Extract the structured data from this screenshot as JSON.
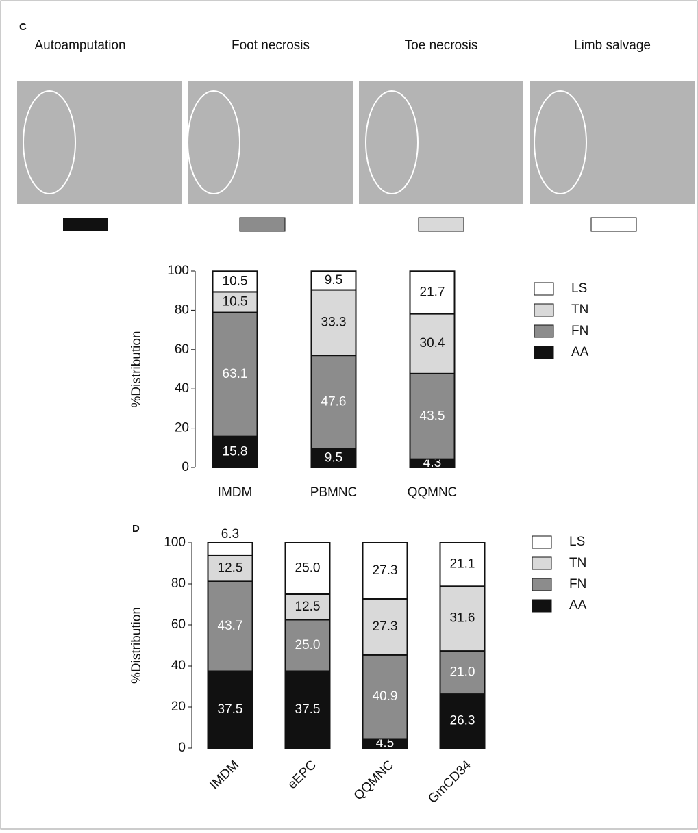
{
  "panel_c": {
    "label": "C",
    "photos": [
      "Autoamputation",
      "Foot necrosis",
      "Toe necrosis",
      "Limb salvage"
    ]
  },
  "chart_data": [
    {
      "type": "bar",
      "stacked": true,
      "ylabel": "%Distribution",
      "categories": [
        "IMDM",
        "PBMNC",
        "QQMNC"
      ],
      "ylim": [
        0,
        100
      ],
      "yticks": [
        0,
        20,
        40,
        60,
        80,
        100
      ],
      "legend": "right",
      "series": [
        {
          "name": "AA",
          "color": "#111111",
          "label_color": "#ffffff",
          "values": [
            15.8,
            9.5,
            4.3
          ],
          "value_labels": [
            "15.8",
            "9.5",
            "4.3"
          ]
        },
        {
          "name": "FN",
          "color": "#8c8c8c",
          "label_color": "#ffffff",
          "values": [
            63.1,
            47.6,
            43.5
          ],
          "value_labels": [
            "63.1",
            "47.6",
            "43.5"
          ]
        },
        {
          "name": "TN",
          "color": "#d9d9d9",
          "label_color": "#111111",
          "values": [
            10.5,
            33.3,
            30.4
          ],
          "value_labels": [
            "10.5",
            "33.3",
            "30.4"
          ]
        },
        {
          "name": "LS",
          "color": "#ffffff",
          "label_color": "#111111",
          "values": [
            10.5,
            9.5,
            21.7
          ],
          "value_labels": [
            "10.5",
            "9.5",
            "21.7"
          ]
        }
      ]
    },
    {
      "type": "bar",
      "stacked": true,
      "panel": "D",
      "ylabel": "%Distribution",
      "categories": [
        "IMDM",
        "eEPC",
        "QQMNC",
        "GmCD34"
      ],
      "ylim": [
        0,
        100
      ],
      "yticks": [
        0,
        20,
        40,
        60,
        80,
        100
      ],
      "legend": "right",
      "series": [
        {
          "name": "AA",
          "color": "#111111",
          "label_color": "#ffffff",
          "values": [
            37.5,
            37.5,
            4.5,
            26.3
          ],
          "value_labels": [
            "37.5",
            "37.5",
            "4.5",
            "26.3"
          ]
        },
        {
          "name": "FN",
          "color": "#8c8c8c",
          "label_color": "#ffffff",
          "values": [
            43.7,
            25.0,
            40.9,
            21.0
          ],
          "value_labels": [
            "43.7",
            "25.0",
            "40.9",
            "21.0"
          ]
        },
        {
          "name": "TN",
          "color": "#d9d9d9",
          "label_color": "#111111",
          "values": [
            12.5,
            12.5,
            27.3,
            31.6
          ],
          "value_labels": [
            "12.5",
            "12.5",
            "27.3",
            "31.6"
          ]
        },
        {
          "name": "LS",
          "color": "#ffffff",
          "label_color": "#111111",
          "values": [
            6.3,
            25.0,
            27.3,
            21.1
          ],
          "value_labels": [
            "6.3",
            "25.0",
            "27.3",
            "21.1"
          ]
        }
      ]
    }
  ]
}
